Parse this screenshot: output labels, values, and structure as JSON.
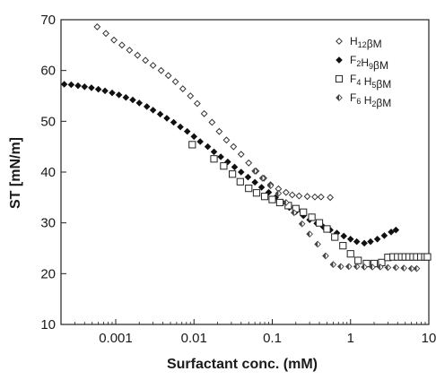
{
  "chart_data": {
    "type": "scatter",
    "xlabel": "Surfactant conc. (mM)",
    "ylabel": "ST [mN/m]",
    "x_scale": "log",
    "xlim": [
      0.0002,
      10
    ],
    "ylim": [
      10,
      70
    ],
    "x_ticks": [
      {
        "value": 0.001,
        "label": "0.001"
      },
      {
        "value": 0.01,
        "label": "0.01"
      },
      {
        "value": 0.1,
        "label": "0.1"
      },
      {
        "value": 1,
        "label": "1"
      },
      {
        "value": 10,
        "label": "10"
      }
    ],
    "y_ticks": [
      {
        "value": 10,
        "label": "10"
      },
      {
        "value": 20,
        "label": "20"
      },
      {
        "value": 30,
        "label": "30"
      },
      {
        "value": 40,
        "label": "40"
      },
      {
        "value": 50,
        "label": "50"
      },
      {
        "value": 60,
        "label": "60"
      },
      {
        "value": 70,
        "label": "70"
      }
    ],
    "grid": false,
    "legend_position": "top-right",
    "series": [
      {
        "name": "H12βM",
        "legend_parts": [
          {
            "t": "H",
            "sub": false
          },
          {
            "t": "12",
            "sub": true
          },
          {
            "t": "βM",
            "sub": false
          }
        ],
        "marker": "open-diamond",
        "color": "#333333",
        "x": [
          0.00058,
          0.00075,
          0.00095,
          0.0012,
          0.0015,
          0.0019,
          0.0024,
          0.003,
          0.0038,
          0.0047,
          0.0058,
          0.0072,
          0.009,
          0.011,
          0.0135,
          0.017,
          0.021,
          0.026,
          0.032,
          0.04,
          0.05,
          0.062,
          0.078,
          0.095,
          0.12,
          0.15,
          0.18,
          0.22,
          0.28,
          0.35,
          0.42,
          0.55
        ],
        "y": [
          68.6,
          67.3,
          66.0,
          65.0,
          64.0,
          63.0,
          62.0,
          61.0,
          60.0,
          59.0,
          57.8,
          56.4,
          55.0,
          53.5,
          51.5,
          49.8,
          48.0,
          46.3,
          45.0,
          43.5,
          41.8,
          40.2,
          38.8,
          37.5,
          36.7,
          36.0,
          35.5,
          35.3,
          35.2,
          35.1,
          35.1,
          35.0
        ]
      },
      {
        "name": "F2H9βM",
        "legend_parts": [
          {
            "t": "F",
            "sub": false
          },
          {
            "t": "2",
            "sub": true
          },
          {
            "t": "H",
            "sub": false
          },
          {
            "t": "9",
            "sub": true
          },
          {
            "t": "βM",
            "sub": false
          }
        ],
        "marker": "filled-diamond",
        "color": "#111111",
        "x": [
          0.00022,
          0.00027,
          0.00033,
          0.0004,
          0.00049,
          0.0006,
          0.00073,
          0.0009,
          0.0011,
          0.00135,
          0.00165,
          0.002,
          0.0025,
          0.003,
          0.0037,
          0.0045,
          0.0055,
          0.0067,
          0.0082,
          0.01,
          0.012,
          0.015,
          0.018,
          0.022,
          0.027,
          0.033,
          0.04,
          0.049,
          0.06,
          0.073,
          0.09,
          0.11,
          0.135,
          0.165,
          0.2,
          0.25,
          0.3,
          0.37,
          0.45,
          0.55,
          0.67,
          0.82,
          1.0,
          1.2,
          1.5,
          1.8,
          2.2,
          2.7,
          3.3,
          3.8
        ],
        "y": [
          57.3,
          57.2,
          57.0,
          56.8,
          56.6,
          56.3,
          56.0,
          55.6,
          55.2,
          54.7,
          54.2,
          53.6,
          52.9,
          52.2,
          51.4,
          50.6,
          49.8,
          48.9,
          48.0,
          47.0,
          46.0,
          45.0,
          44.0,
          43.0,
          42.0,
          41.0,
          40.0,
          39.0,
          38.0,
          37.0,
          36.0,
          35.0,
          34.0,
          33.0,
          32.2,
          31.4,
          30.6,
          29.9,
          29.2,
          28.6,
          28.0,
          27.4,
          26.8,
          26.3,
          26.0,
          26.3,
          26.8,
          27.5,
          28.2,
          28.6
        ]
      },
      {
        "name": "F4H5βM",
        "legend_parts": [
          {
            "t": "F",
            "sub": false
          },
          {
            "t": "4",
            "sub": true
          },
          {
            "t": " H",
            "sub": false
          },
          {
            "t": "5",
            "sub": true
          },
          {
            "t": "βM",
            "sub": false
          }
        ],
        "marker": "open-square",
        "color": "#222222",
        "x": [
          0.0095,
          0.018,
          0.024,
          0.031,
          0.039,
          0.05,
          0.063,
          0.08,
          0.1,
          0.125,
          0.16,
          0.2,
          0.25,
          0.32,
          0.4,
          0.5,
          0.63,
          0.8,
          1.0,
          1.25,
          1.6,
          2.0,
          2.5,
          3.0,
          3.5,
          4.0,
          4.5,
          5.0,
          5.6,
          6.3,
          7.0,
          7.9,
          8.9,
          9.6
        ],
        "y": [
          45.4,
          42.6,
          41.2,
          39.6,
          38.1,
          36.8,
          35.9,
          35.2,
          34.6,
          34.0,
          33.4,
          32.8,
          32.1,
          31.1,
          30.0,
          28.8,
          27.2,
          25.5,
          23.9,
          22.6,
          22.0,
          22.0,
          22.2,
          23.2,
          23.3,
          23.3,
          23.3,
          23.3,
          23.3,
          23.3,
          23.3,
          23.3,
          23.3,
          23.3
        ]
      },
      {
        "name": "F6H2βM",
        "legend_parts": [
          {
            "t": "F",
            "sub": false
          },
          {
            "t": "6",
            "sub": true
          },
          {
            "t": " H",
            "sub": false
          },
          {
            "t": "2",
            "sub": true
          },
          {
            "t": "βM",
            "sub": false
          }
        ],
        "marker": "half-diamond",
        "color": "#444444",
        "x": [
          0.06,
          0.075,
          0.095,
          0.12,
          0.15,
          0.19,
          0.24,
          0.3,
          0.38,
          0.48,
          0.6,
          0.75,
          0.95,
          1.2,
          1.5,
          1.9,
          2.4,
          3.0,
          3.8,
          4.8,
          6.0,
          7.0
        ],
        "y": [
          40.2,
          38.8,
          37.3,
          35.8,
          34.0,
          32.0,
          29.8,
          27.8,
          25.8,
          23.5,
          21.8,
          21.4,
          21.4,
          21.4,
          21.3,
          21.3,
          21.3,
          21.2,
          21.2,
          21.1,
          21.0,
          21.0
        ]
      }
    ]
  }
}
